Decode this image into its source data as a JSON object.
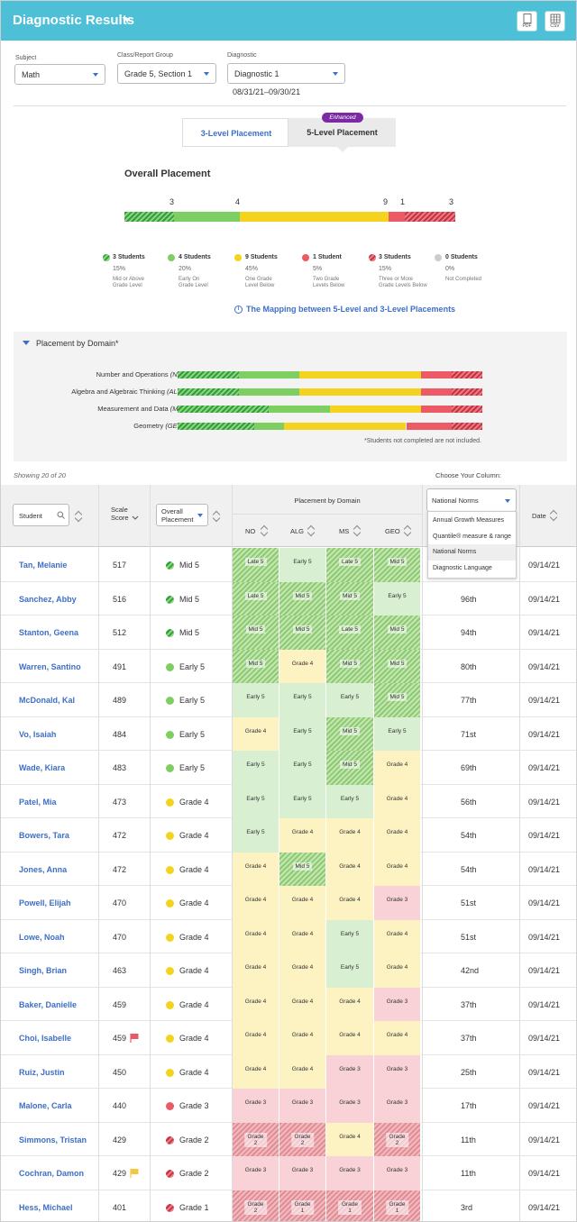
{
  "header": {
    "title": "Diagnostic Results",
    "export_pdf": "PDF",
    "export_csv": "CSV"
  },
  "filters": {
    "subject": {
      "label": "Subject",
      "value": "Math"
    },
    "class": {
      "label": "Class/Report Group",
      "value": "Grade 5, Section 1"
    },
    "diagnostic": {
      "label": "Diagnostic",
      "value": "Diagnostic 1"
    },
    "date_range": "08/31/21–09/30/21"
  },
  "tabs": {
    "three_level": "3-Level Placement",
    "five_level": "5-Level Placement",
    "badge": "Enhanced"
  },
  "overall": {
    "title": "Overall Placement",
    "bar_counts": [
      "3",
      "4",
      "9",
      "1",
      "3"
    ],
    "legend": [
      {
        "name": "3 Students",
        "pct": "15%",
        "desc": "Mid or Above Grade Level",
        "desc1": "Mid or Above",
        "desc2": "Grade Level",
        "color": "#2e9e3e"
      },
      {
        "name": "4 Students",
        "pct": "20%",
        "desc": "Early On Grade Level",
        "desc1": "Early On",
        "desc2": "Grade Level",
        "color": "#7dcf62"
      },
      {
        "name": "9 Students",
        "pct": "45%",
        "desc": "One Grade Level Below",
        "desc1": "One Grade",
        "desc2": "Level Below",
        "color": "#f4d31f"
      },
      {
        "name": "1 Student",
        "pct": "5%",
        "desc": "Two Grade Levels Below",
        "desc1": "Two Grade",
        "desc2": "Levels Below",
        "color": "#eb5a65"
      },
      {
        "name": "3 Students",
        "pct": "15%",
        "desc": "Three or More Grade Levels Below",
        "desc1": "Three or More",
        "desc2": "Grade Levels Below",
        "color": "#c8313e"
      },
      {
        "name": "0 Students",
        "pct": "0%",
        "desc": "Not Completed",
        "desc1": "Not Completed",
        "desc2": "",
        "color": "#cccccc"
      }
    ],
    "mapping_link": "The Mapping between 5-Level and 3-Level Placements"
  },
  "domain_section": {
    "title": "Placement by Domain*",
    "note": "*Students not completed are not included.",
    "domains": [
      {
        "name": "Number and Operations",
        "abbr": "(NO)",
        "segments": [
          4,
          4,
          8,
          2,
          2
        ]
      },
      {
        "name": "Algebra and Algebraic Thinking",
        "abbr": "(ALG)",
        "segments": [
          4,
          4,
          8,
          2,
          2
        ]
      },
      {
        "name": "Measurement and Data",
        "abbr": "(MS)",
        "segments": [
          6,
          4,
          6,
          2,
          2
        ]
      },
      {
        "name": "Geometry",
        "abbr": "(GEO)",
        "segments": [
          5,
          2,
          8,
          3,
          2
        ]
      }
    ]
  },
  "table": {
    "showing": "Showing 20 of 20",
    "choose_column": "Choose Your Column:",
    "headers": {
      "student": "Student",
      "scale_score": "Scale Score",
      "overall": "Overall Placement",
      "domain_group": "Placement by Domain",
      "no": "NO",
      "alg": "ALG",
      "ms": "MS",
      "geo": "GEO",
      "column_select": "National Norms",
      "date": "Date"
    },
    "column_options": [
      "Annual Growth Measures",
      "Quantile® measure & range",
      "National Norms",
      "Diagnostic Language"
    ],
    "rows": [
      {
        "name": "Tan, Melanie",
        "score": "517",
        "place": "Mid 5",
        "lvl": 0,
        "no": "Late 5",
        "alg": "Early 5",
        "ms": "Late 5",
        "geo": "Mid 5",
        "norm": "",
        "date": "09/14/21",
        "flag": ""
      },
      {
        "name": "Sanchez, Abby",
        "score": "516",
        "place": "Mid 5",
        "lvl": 0,
        "no": "Late 5",
        "alg": "Mid 5",
        "ms": "Mid 5",
        "geo": "Early 5",
        "norm": "96th",
        "date": "09/14/21",
        "flag": ""
      },
      {
        "name": "Stanton, Geena",
        "score": "512",
        "place": "Mid 5",
        "lvl": 0,
        "no": "Mid 5",
        "alg": "Mid 5",
        "ms": "Late 5",
        "geo": "Mid 5",
        "norm": "94th",
        "date": "09/14/21",
        "flag": ""
      },
      {
        "name": "Warren, Santino",
        "score": "491",
        "place": "Early 5",
        "lvl": 1,
        "no": "Mid 5",
        "alg": "Grade 4",
        "ms": "Mid 5",
        "geo": "Mid 5",
        "norm": "80th",
        "date": "09/14/21",
        "flag": ""
      },
      {
        "name": "McDonald, Kal",
        "score": "489",
        "place": "Early 5",
        "lvl": 1,
        "no": "Early 5",
        "alg": "Early 5",
        "ms": "Early 5",
        "geo": "Mid 5",
        "norm": "77th",
        "date": "09/14/21",
        "flag": ""
      },
      {
        "name": "Vo, Isaiah",
        "score": "484",
        "place": "Early 5",
        "lvl": 1,
        "no": "Grade 4",
        "alg": "Early 5",
        "ms": "Mid 5",
        "geo": "Early 5",
        "norm": "71st",
        "date": "09/14/21",
        "flag": ""
      },
      {
        "name": "Wade, Kiara",
        "score": "483",
        "place": "Early 5",
        "lvl": 1,
        "no": "Early 5",
        "alg": "Early 5",
        "ms": "Mid 5",
        "geo": "Grade 4",
        "norm": "69th",
        "date": "09/14/21",
        "flag": ""
      },
      {
        "name": "Patel, Mia",
        "score": "473",
        "place": "Grade 4",
        "lvl": 2,
        "no": "Early 5",
        "alg": "Early 5",
        "ms": "Early 5",
        "geo": "Grade 4",
        "norm": "56th",
        "date": "09/14/21",
        "flag": ""
      },
      {
        "name": "Bowers, Tara",
        "score": "472",
        "place": "Grade 4",
        "lvl": 2,
        "no": "Early 5",
        "alg": "Grade 4",
        "ms": "Grade 4",
        "geo": "Grade 4",
        "norm": "54th",
        "date": "09/14/21",
        "flag": ""
      },
      {
        "name": "Jones, Anna",
        "score": "472",
        "place": "Grade 4",
        "lvl": 2,
        "no": "Grade 4",
        "alg": "Mid 5",
        "ms": "Grade 4",
        "geo": "Grade 4",
        "norm": "54th",
        "date": "09/14/21",
        "flag": ""
      },
      {
        "name": "Powell, Elijah",
        "score": "470",
        "place": "Grade 4",
        "lvl": 2,
        "no": "Grade 4",
        "alg": "Grade 4",
        "ms": "Grade 4",
        "geo": "Grade 3",
        "norm": "51st",
        "date": "09/14/21",
        "flag": ""
      },
      {
        "name": "Lowe, Noah",
        "score": "470",
        "place": "Grade 4",
        "lvl": 2,
        "no": "Grade 4",
        "alg": "Grade 4",
        "ms": "Early 5",
        "geo": "Grade 4",
        "norm": "51st",
        "date": "09/14/21",
        "flag": ""
      },
      {
        "name": "Singh, Brian",
        "score": "463",
        "place": "Grade 4",
        "lvl": 2,
        "no": "Grade 4",
        "alg": "Grade 4",
        "ms": "Early 5",
        "geo": "Grade 4",
        "norm": "42nd",
        "date": "09/14/21",
        "flag": ""
      },
      {
        "name": "Baker, Danielle",
        "score": "459",
        "place": "Grade 4",
        "lvl": 2,
        "no": "Grade 4",
        "alg": "Grade 4",
        "ms": "Grade 4",
        "geo": "Grade 3",
        "norm": "37th",
        "date": "09/14/21",
        "flag": ""
      },
      {
        "name": "Choi, Isabelle",
        "score": "459",
        "place": "Grade 4",
        "lvl": 2,
        "no": "Grade 4",
        "alg": "Grade 4",
        "ms": "Grade 4",
        "geo": "Grade 4",
        "norm": "37th",
        "date": "09/14/21",
        "flag": "red"
      },
      {
        "name": "Ruiz, Justin",
        "score": "450",
        "place": "Grade 4",
        "lvl": 2,
        "no": "Grade 4",
        "alg": "Grade 4",
        "ms": "Grade 3",
        "geo": "Grade 3",
        "norm": "25th",
        "date": "09/14/21",
        "flag": ""
      },
      {
        "name": "Malone, Carla",
        "score": "440",
        "place": "Grade 3",
        "lvl": 3,
        "no": "Grade 3",
        "alg": "Grade 3",
        "ms": "Grade 3",
        "geo": "Grade 3",
        "norm": "17th",
        "date": "09/14/21",
        "flag": ""
      },
      {
        "name": "Simmons, Tristan",
        "score": "429",
        "place": "Grade 2",
        "lvl": 4,
        "no": "Grade 2",
        "alg": "Grade 2",
        "ms": "Grade 4",
        "geo": "Grade 2",
        "norm": "11th",
        "date": "09/14/21",
        "flag": ""
      },
      {
        "name": "Cochran, Damon",
        "score": "429",
        "place": "Grade 2",
        "lvl": 4,
        "no": "Grade 3",
        "alg": "Grade 3",
        "ms": "Grade 3",
        "geo": "Grade 3",
        "norm": "11th",
        "date": "09/14/21",
        "flag": "yellow"
      },
      {
        "name": "Hess, Michael",
        "score": "401",
        "place": "Grade 1",
        "lvl": 4,
        "no": "Grade 2",
        "alg": "Grade 1",
        "ms": "Grade 1",
        "geo": "Grade 1",
        "norm": "3rd",
        "date": "09/14/21",
        "flag": ""
      }
    ]
  },
  "colors": {
    "accent": "#3d6fc7",
    "header_bg": "#4dbfd6",
    "mid_or_above": "#2e9e3e",
    "early_on": "#7dcf62",
    "one_below": "#f4d31f",
    "two_below": "#eb5a65",
    "three_below": "#c8313e",
    "cell_green_hatch": "#a9d88c",
    "cell_green": "#d8efd2",
    "cell_yellow": "#fcf2c2",
    "cell_pink": "#f8d2d6",
    "cell_red_hatch": "#eaa0a8"
  }
}
